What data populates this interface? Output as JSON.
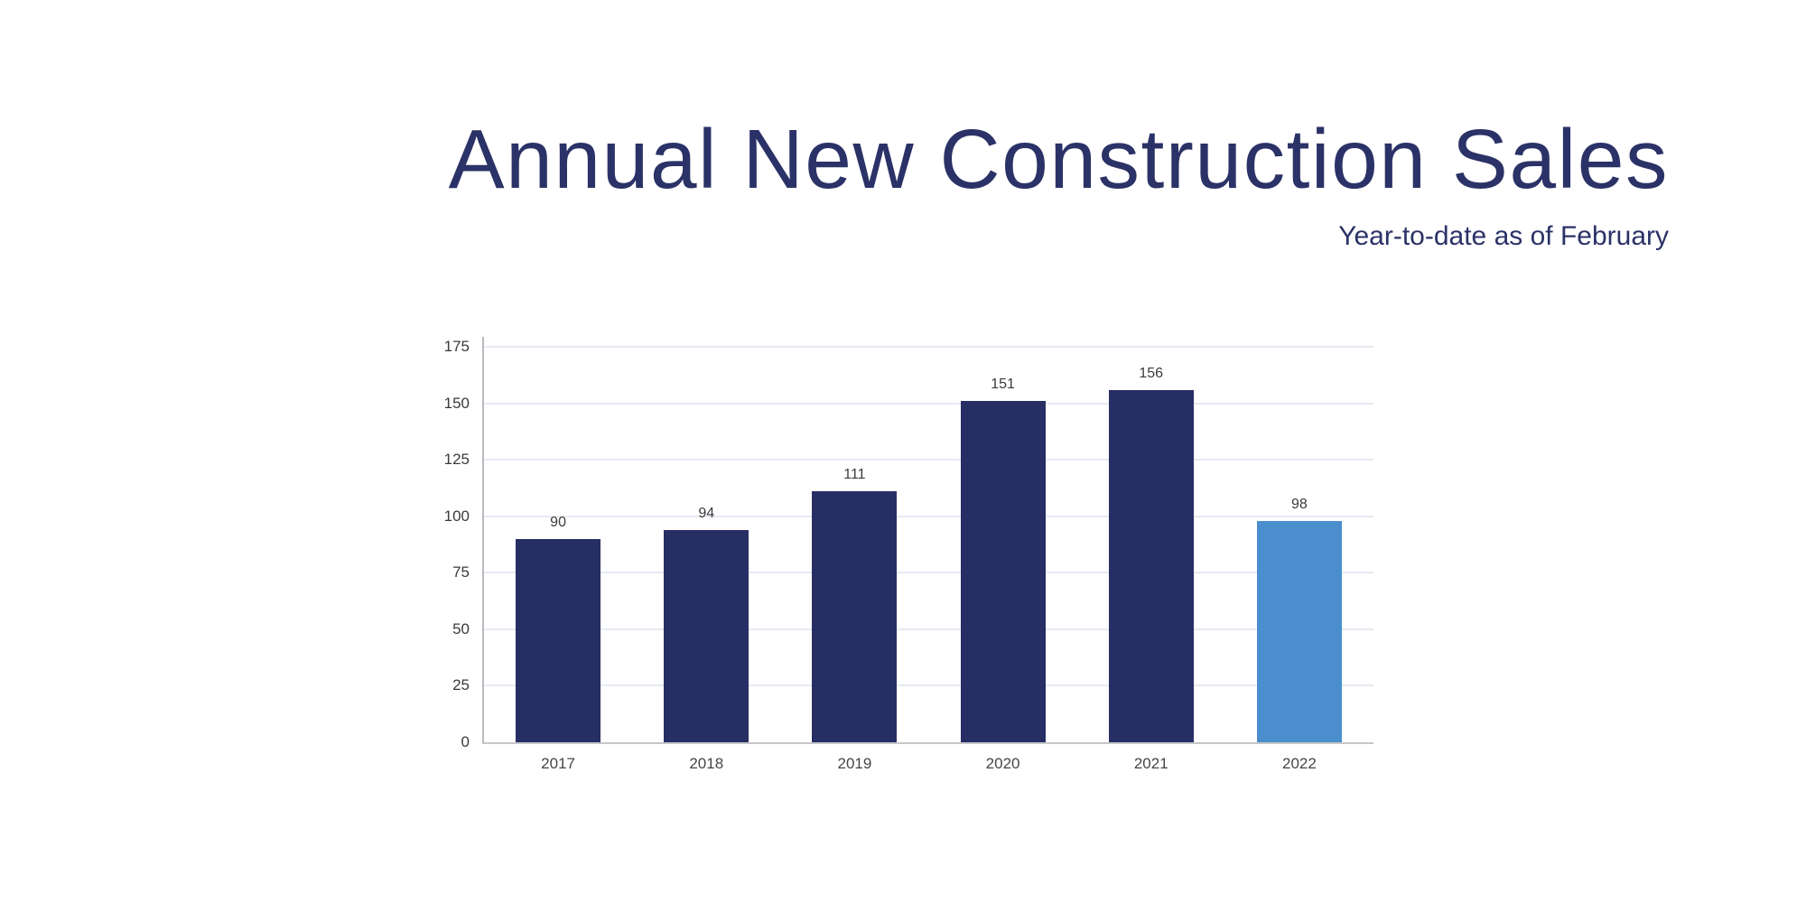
{
  "header": {
    "title": "Annual New Construction Sales",
    "subtitle": "Year-to-date as of February"
  },
  "chart_data": {
    "type": "bar",
    "title": "Annual New Construction Sales",
    "subtitle": "Year-to-date as of February",
    "categories": [
      "2017",
      "2018",
      "2019",
      "2020",
      "2021",
      "2022"
    ],
    "values": [
      90,
      94,
      111,
      151,
      156,
      98
    ],
    "bar_colors": [
      "#272e64",
      "#272e64",
      "#272e64",
      "#272e64",
      "#272e64",
      "#4a8ecd"
    ],
    "data_labels": [
      "90",
      "94",
      "111",
      "151",
      "156",
      "98"
    ],
    "y_ticks": [
      0,
      25,
      50,
      75,
      100,
      125,
      150,
      175
    ],
    "ylim": [
      0,
      175
    ],
    "xlabel": "",
    "ylabel": "",
    "grid": true,
    "legend_position": "none",
    "colors": {
      "title": "#2b3267",
      "bar_default": "#272e64",
      "bar_highlight": "#4a8ecd",
      "gridline": "#e5eaf2",
      "axis_y_line": "#b9bcc0",
      "axis_x_line": "#c5c6c8",
      "tick_label": "#3a3a3a",
      "category_label": "#454545",
      "background": "#ffffff"
    }
  }
}
